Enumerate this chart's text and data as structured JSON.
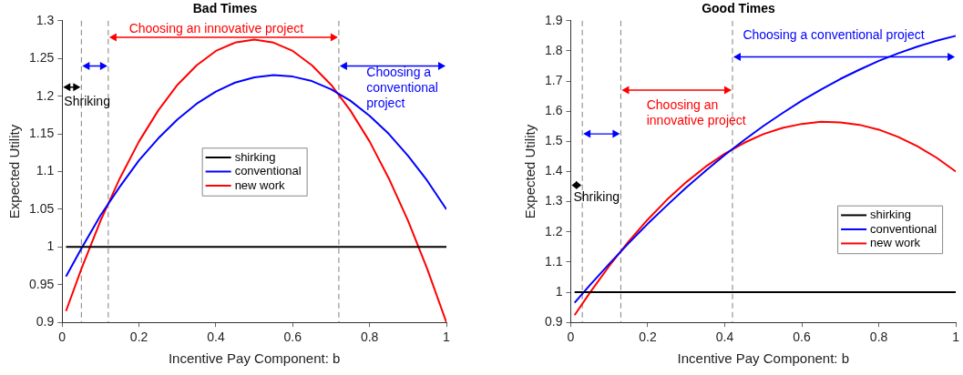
{
  "chart_data": [
    {
      "type": "line",
      "title": "Bad Times",
      "xlabel": "Incentive Pay Component: b",
      "ylabel": "Expected Utility",
      "x": [
        0.01,
        0.05,
        0.1,
        0.15,
        0.2,
        0.25,
        0.3,
        0.35,
        0.4,
        0.45,
        0.5,
        0.55,
        0.6,
        0.65,
        0.7,
        0.75,
        0.8,
        0.85,
        0.9,
        0.95,
        1
      ],
      "series": [
        {
          "name": "shirking",
          "color": "#000000",
          "values": [
            1,
            1,
            1,
            1,
            1,
            1,
            1,
            1,
            1,
            1,
            1,
            1,
            1,
            1,
            1,
            1,
            1,
            1,
            1,
            1,
            1
          ]
        },
        {
          "name": "conventional",
          "color": "#0000ff",
          "values": [
            0.961,
            0.998,
            1.042,
            1.08,
            1.115,
            1.144,
            1.169,
            1.19,
            1.206,
            1.218,
            1.225,
            1.228,
            1.226,
            1.22,
            1.209,
            1.194,
            1.174,
            1.15,
            1.121,
            1.088,
            1.05
          ]
        },
        {
          "name": "new work",
          "color": "#ff0000",
          "values": [
            0.915,
            0.971,
            1.035,
            1.091,
            1.14,
            1.181,
            1.215,
            1.241,
            1.26,
            1.271,
            1.275,
            1.271,
            1.26,
            1.241,
            1.215,
            1.181,
            1.14,
            1.091,
            1.035,
            0.971,
            0.9
          ]
        }
      ],
      "xlim": [
        0,
        1
      ],
      "xticks": [
        0,
        0.2,
        0.4,
        0.6,
        0.8,
        1
      ],
      "ylim": [
        0.9,
        1.3
      ],
      "yticks": [
        0.9,
        0.95,
        1,
        1.05,
        1.1,
        1.15,
        1.2,
        1.25,
        1.3
      ],
      "ref_lines": [
        {
          "axis": "x",
          "value": 0.05,
          "color": "#808080",
          "line_style": "dashed"
        },
        {
          "axis": "x",
          "value": 0.12,
          "color": "#808080",
          "line_style": "dashed"
        },
        {
          "axis": "x",
          "value": 0.72,
          "color": "#808080",
          "line_style": "dashed"
        }
      ],
      "annotations": [
        "Shriking",
        "Choosing an innovative project",
        "Choosing a conventional project"
      ],
      "legend": "center",
      "grid": false,
      "marker": "none",
      "line_style": "solid"
    },
    {
      "type": "line",
      "title": "Good Times",
      "xlabel": "Incentive Pay Component: b",
      "ylabel": "Expected Utility",
      "x": [
        0.01,
        0.05,
        0.1,
        0.15,
        0.2,
        0.25,
        0.3,
        0.35,
        0.4,
        0.45,
        0.5,
        0.55,
        0.6,
        0.65,
        0.7,
        0.75,
        0.8,
        0.85,
        0.9,
        0.95,
        1
      ],
      "series": [
        {
          "name": "shirking",
          "color": "#000000",
          "values": [
            1,
            1,
            1,
            1,
            1,
            1,
            1,
            1,
            1,
            1,
            1,
            1,
            1,
            1,
            1,
            1,
            1,
            1,
            1,
            1,
            1
          ]
        },
        {
          "name": "conventional",
          "color": "#0000ff",
          "values": [
            0.965,
            1.024,
            1.094,
            1.162,
            1.227,
            1.288,
            1.347,
            1.402,
            1.455,
            1.504,
            1.551,
            1.594,
            1.635,
            1.672,
            1.707,
            1.738,
            1.767,
            1.792,
            1.814,
            1.834,
            1.85
          ]
        },
        {
          "name": "new work",
          "color": "#ff0000",
          "values": [
            0.924,
            0.999,
            1.087,
            1.168,
            1.241,
            1.307,
            1.365,
            1.416,
            1.459,
            1.495,
            1.524,
            1.545,
            1.558,
            1.565,
            1.563,
            1.555,
            1.539,
            1.515,
            1.484,
            1.446,
            1.4
          ]
        }
      ],
      "xlim": [
        0,
        1
      ],
      "xticks": [
        0,
        0.2,
        0.4,
        0.6,
        0.8,
        1
      ],
      "ylim": [
        0.9,
        1.9
      ],
      "yticks": [
        0.9,
        1,
        1.1,
        1.2,
        1.3,
        1.4,
        1.5,
        1.6,
        1.7,
        1.8,
        1.9
      ],
      "ref_lines": [
        {
          "axis": "x",
          "value": 0.03,
          "color": "#808080",
          "line_style": "dashed"
        },
        {
          "axis": "x",
          "value": 0.13,
          "color": "#808080",
          "line_style": "dashed"
        },
        {
          "axis": "x",
          "value": 0.42,
          "color": "#808080",
          "line_style": "dashed"
        }
      ],
      "annotations": [
        "Shriking",
        "Choosing an innovative project",
        "Choosing a conventional project"
      ],
      "legend": "bottom right",
      "grid": false,
      "marker": "none",
      "line_style": "solid"
    }
  ]
}
